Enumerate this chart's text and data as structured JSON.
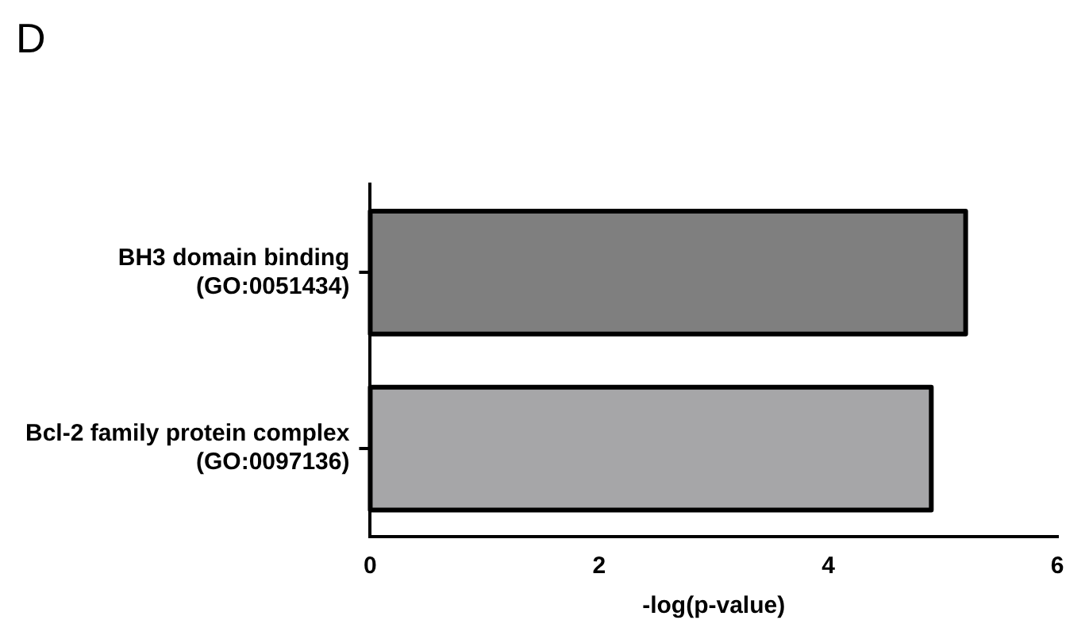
{
  "chart_data": {
    "type": "bar",
    "orientation": "horizontal",
    "title": "D",
    "xlabel": "-log(p-value)",
    "categories": [
      "BH3 domain binding\n(GO:0051434)",
      "Bcl-2 family protein complex\n(GO:0097136)"
    ],
    "values": [
      5.2,
      4.9
    ],
    "colors": [
      "#7f7f7f",
      "#a6a6a8"
    ],
    "xlim": [
      0,
      6
    ],
    "xticks": [
      0,
      2,
      4,
      6
    ],
    "grid": false,
    "legend": false
  }
}
